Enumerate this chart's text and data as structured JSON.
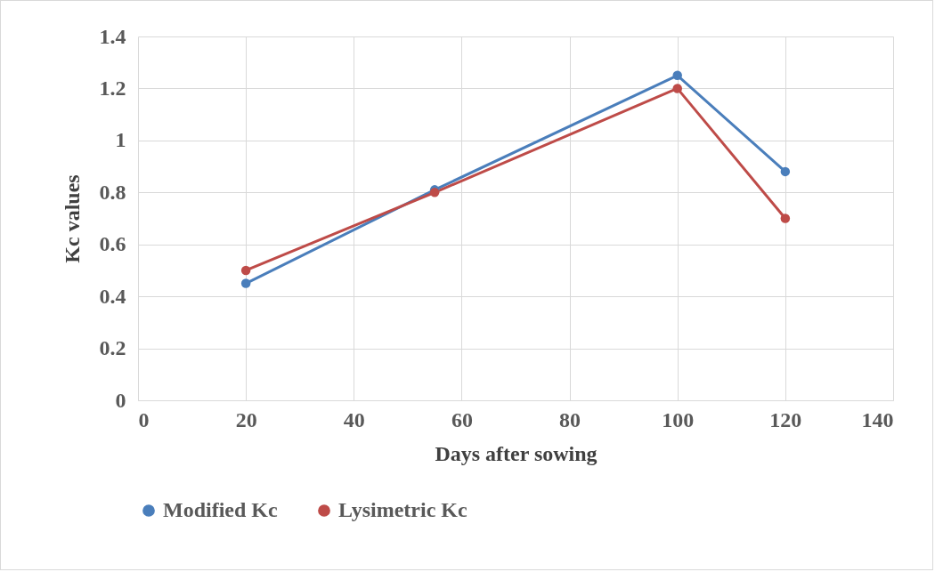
{
  "chart_data": {
    "type": "line",
    "xlabel": "Days after sowing",
    "ylabel": "Kc values",
    "series": [
      {
        "name": "Modified Kc",
        "color": "#4a7ebb",
        "x": [
          20,
          55,
          100,
          120
        ],
        "values": [
          0.45,
          0.81,
          1.25,
          0.88
        ]
      },
      {
        "name": "Lysimetric Kc",
        "color": "#be4b48",
        "x": [
          20,
          55,
          100,
          120
        ],
        "values": [
          0.5,
          0.8,
          1.2,
          0.7
        ]
      }
    ],
    "xlim": [
      0,
      140
    ],
    "xticks": [
      0,
      20,
      40,
      60,
      80,
      100,
      120,
      140
    ],
    "ylim": [
      0,
      1.4
    ],
    "yticks": [
      0,
      0.2,
      0.4,
      0.6,
      0.8,
      1,
      1.2,
      1.4
    ],
    "grid": true,
    "legend": "bottom",
    "marker": "circle",
    "line_style": "solid"
  }
}
